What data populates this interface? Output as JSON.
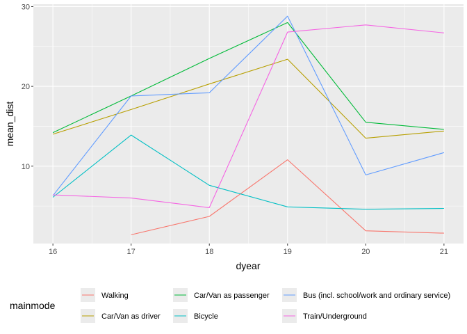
{
  "chart_data": {
    "type": "line",
    "xlabel": "dyear",
    "ylabel": "mean_dist",
    "x": [
      16,
      17,
      18,
      19,
      20,
      21
    ],
    "x_ticks": [
      "16",
      "17",
      "18",
      "19",
      "20",
      "21"
    ],
    "y_ticks": [
      "10",
      "20",
      "30"
    ],
    "xlim": [
      15.75,
      21.25
    ],
    "ylim": [
      0.3,
      30.3
    ],
    "grid": true,
    "legend_title": "mainmode",
    "legend_position": "bottom",
    "series": [
      {
        "name": "Walking",
        "color": "#F8766D",
        "x": [
          17,
          18,
          19,
          20,
          21
        ],
        "values": [
          1.4,
          3.7,
          10.8,
          1.9,
          1.6
        ]
      },
      {
        "name": "Car/Van as driver",
        "color": "#B79F00",
        "x": [
          16,
          17,
          18,
          19,
          20,
          21
        ],
        "values": [
          14.0,
          17.1,
          20.3,
          23.4,
          13.5,
          14.4
        ]
      },
      {
        "name": "Car/Van as passenger",
        "color": "#00BA38",
        "x": [
          16,
          17,
          18,
          19,
          20,
          21
        ],
        "values": [
          14.2,
          18.8,
          23.5,
          28.0,
          15.5,
          14.6
        ]
      },
      {
        "name": "Bicycle",
        "color": "#00BFC4",
        "x": [
          16,
          17,
          18,
          19,
          20,
          21
        ],
        "values": [
          6.1,
          13.9,
          7.6,
          4.9,
          4.6,
          4.7
        ]
      },
      {
        "name": "Bus (incl. school/work and ordinary service)",
        "color": "#619CFF",
        "x": [
          16,
          17,
          18,
          19,
          20,
          21
        ],
        "values": [
          6.3,
          18.8,
          19.2,
          28.8,
          8.9,
          11.7
        ]
      },
      {
        "name": "Train/Underground",
        "color": "#F564E3",
        "x": [
          16,
          17,
          18,
          19,
          20,
          21
        ],
        "values": [
          6.4,
          6.0,
          4.8,
          26.8,
          27.7,
          26.7
        ]
      }
    ]
  }
}
